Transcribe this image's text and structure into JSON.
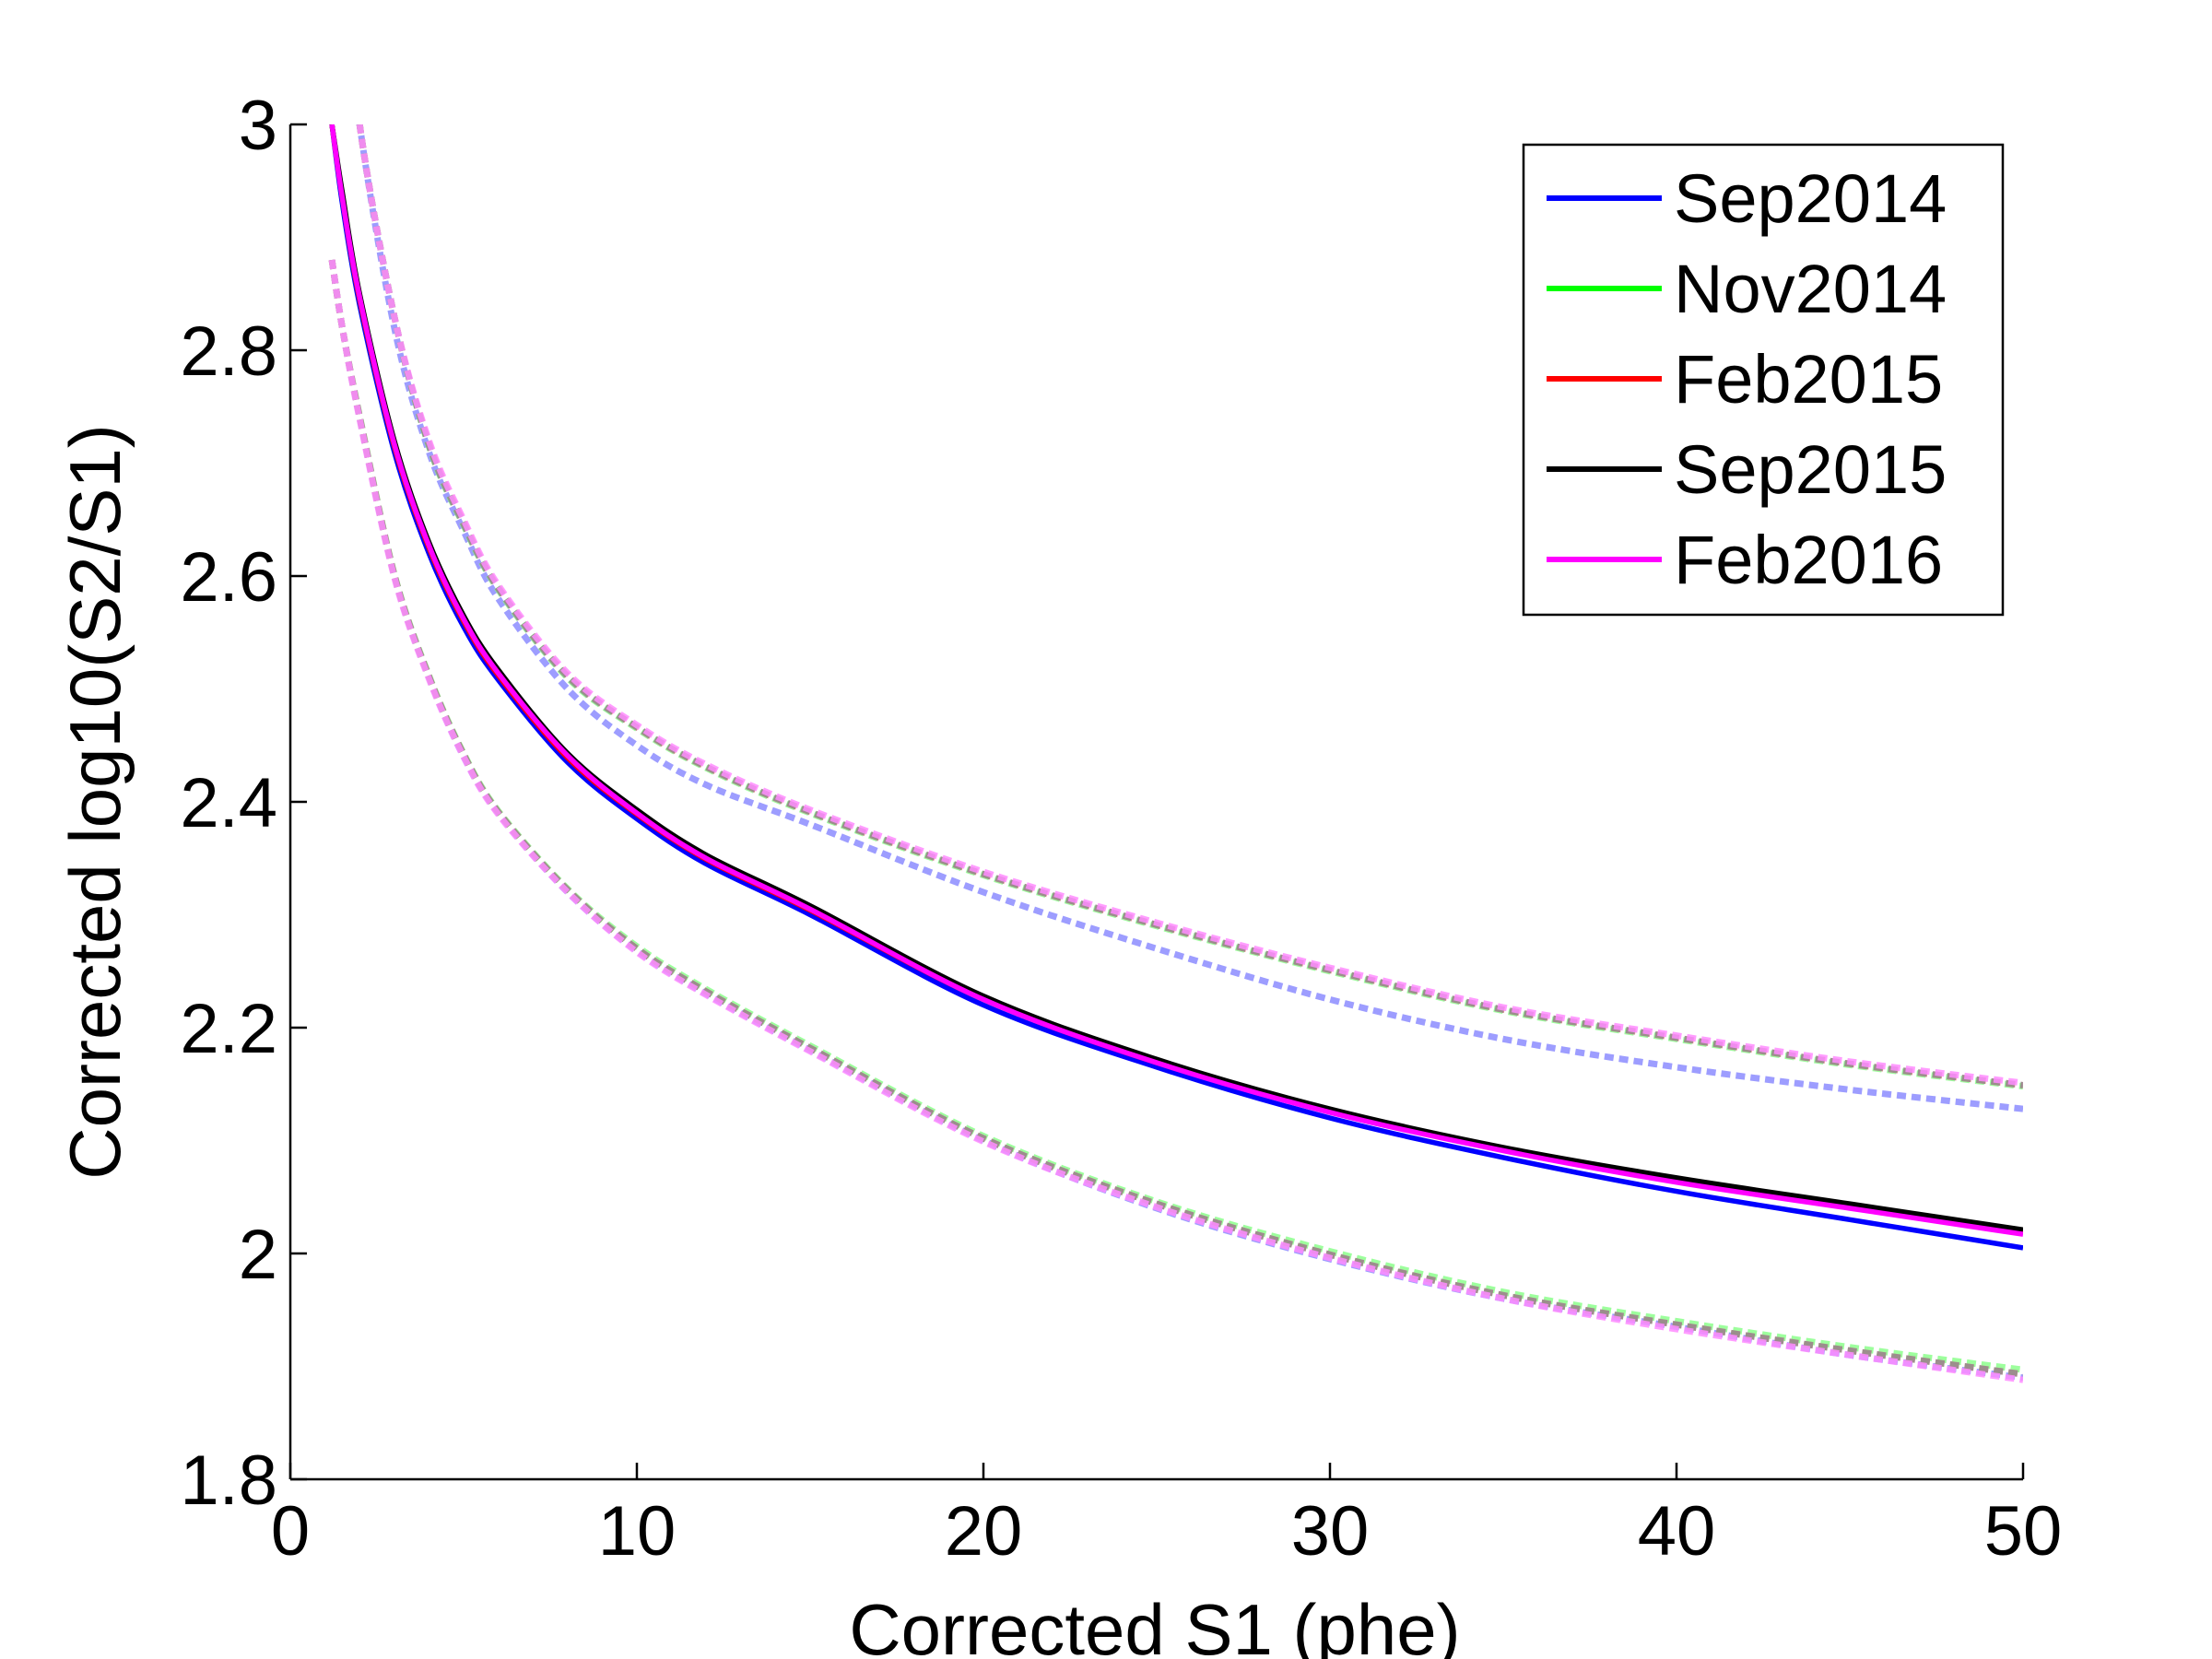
{
  "chart_data": {
    "type": "line",
    "xlabel": "Corrected S1 (phe)",
    "ylabel": "Corrected log10(S2/S1)",
    "xlim": [
      0,
      50
    ],
    "ylim": [
      1.8,
      3
    ],
    "x_ticks": [
      "0",
      "10",
      "20",
      "30",
      "40",
      "50"
    ],
    "y_ticks": [
      "1.8",
      "2",
      "2.2",
      "2.4",
      "2.6",
      "2.8",
      "3"
    ],
    "grid": false,
    "legend_position": "top-right",
    "x": [
      1.2,
      1.5,
      2,
      3,
      4,
      5,
      6,
      8,
      10,
      12,
      15,
      20,
      25,
      30,
      35,
      40,
      45,
      50
    ],
    "series": [
      {
        "name": "Sep2014",
        "color": "#0000ff",
        "median": [
          3.0,
          2.93,
          2.84,
          2.71,
          2.62,
          2.555,
          2.508,
          2.435,
          2.385,
          2.345,
          2.3,
          2.22,
          2.165,
          2.12,
          2.085,
          2.055,
          2.03,
          2.005
        ],
        "upper": [
          3.25,
          3.15,
          3.0,
          2.82,
          2.71,
          2.64,
          2.58,
          2.5,
          2.45,
          2.415,
          2.38,
          2.32,
          2.27,
          2.225,
          2.19,
          2.165,
          2.145,
          2.128
        ],
        "lower": [
          2.88,
          2.82,
          2.74,
          2.6,
          2.51,
          2.44,
          2.39,
          2.32,
          2.268,
          2.23,
          2.18,
          2.1,
          2.04,
          1.995,
          1.96,
          1.935,
          1.91,
          1.89
        ]
      },
      {
        "name": "Nov2014",
        "color": "#00ff00",
        "median": [
          3.0,
          2.935,
          2.845,
          2.715,
          2.625,
          2.56,
          2.513,
          2.44,
          2.39,
          2.35,
          2.305,
          2.226,
          2.17,
          2.127,
          2.093,
          2.066,
          2.043,
          2.02
        ],
        "upper": [
          3.26,
          3.16,
          3.0,
          2.83,
          2.715,
          2.645,
          2.588,
          2.51,
          2.465,
          2.43,
          2.39,
          2.335,
          2.29,
          2.25,
          2.215,
          2.19,
          2.167,
          2.148
        ],
        "lower": [
          2.88,
          2.82,
          2.742,
          2.602,
          2.512,
          2.443,
          2.392,
          2.323,
          2.272,
          2.234,
          2.184,
          2.104,
          2.046,
          2.002,
          1.966,
          1.94,
          1.917,
          1.897
        ]
      },
      {
        "name": "Feb2015",
        "color": "#ff0000",
        "median": [
          3.0,
          2.935,
          2.845,
          2.715,
          2.625,
          2.56,
          2.512,
          2.439,
          2.389,
          2.349,
          2.304,
          2.225,
          2.169,
          2.126,
          2.092,
          2.065,
          2.042,
          2.019
        ],
        "upper": [
          3.26,
          3.16,
          3.0,
          2.83,
          2.718,
          2.648,
          2.59,
          2.512,
          2.466,
          2.431,
          2.391,
          2.336,
          2.291,
          2.251,
          2.216,
          2.191,
          2.168,
          2.149
        ],
        "lower": [
          2.88,
          2.82,
          2.741,
          2.601,
          2.511,
          2.442,
          2.391,
          2.322,
          2.27,
          2.232,
          2.182,
          2.102,
          2.044,
          1.999,
          1.963,
          1.937,
          1.914,
          1.893
        ]
      },
      {
        "name": "Sep2015",
        "color": "#000000",
        "median": [
          3.0,
          2.94,
          2.85,
          2.72,
          2.63,
          2.565,
          2.517,
          2.443,
          2.393,
          2.353,
          2.308,
          2.228,
          2.172,
          2.128,
          2.094,
          2.067,
          2.044,
          2.021
        ],
        "upper": [
          3.26,
          3.16,
          3.0,
          2.83,
          2.716,
          2.646,
          2.589,
          2.511,
          2.466,
          2.431,
          2.391,
          2.336,
          2.291,
          2.251,
          2.216,
          2.191,
          2.168,
          2.149
        ],
        "lower": [
          2.88,
          2.82,
          2.741,
          2.601,
          2.511,
          2.442,
          2.391,
          2.322,
          2.27,
          2.232,
          2.182,
          2.102,
          2.044,
          1.999,
          1.963,
          1.937,
          1.914,
          1.893
        ]
      },
      {
        "name": "Feb2016",
        "color": "#ff00ff",
        "median": [
          3.0,
          2.935,
          2.847,
          2.717,
          2.627,
          2.562,
          2.514,
          2.441,
          2.39,
          2.35,
          2.305,
          2.225,
          2.169,
          2.125,
          2.091,
          2.063,
          2.04,
          2.017
        ],
        "upper": [
          3.26,
          3.16,
          3.0,
          2.83,
          2.72,
          2.65,
          2.592,
          2.514,
          2.468,
          2.433,
          2.393,
          2.338,
          2.293,
          2.253,
          2.218,
          2.193,
          2.17,
          2.151
        ],
        "lower": [
          2.88,
          2.82,
          2.739,
          2.599,
          2.509,
          2.44,
          2.389,
          2.32,
          2.267,
          2.229,
          2.179,
          2.099,
          2.041,
          1.996,
          1.96,
          1.933,
          1.91,
          1.888
        ]
      }
    ]
  }
}
